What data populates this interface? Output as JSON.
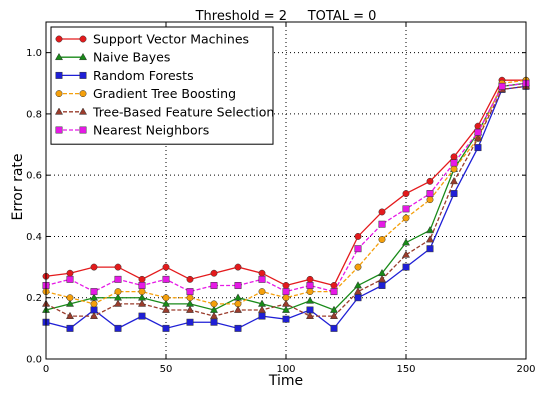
{
  "chart_data": {
    "type": "line",
    "title": "Threshold = 2     TOTAL = 0",
    "xlabel": "Time",
    "ylabel": "Error rate",
    "xlim": [
      0,
      200
    ],
    "ylim": [
      0.0,
      1.1
    ],
    "xticks": [
      0,
      50,
      100,
      150,
      200
    ],
    "yticks": [
      0.0,
      0.2,
      0.4,
      0.6,
      0.8,
      1.0
    ],
    "xtick_labels": [
      "0",
      "50",
      "100",
      "150",
      "200"
    ],
    "ytick_labels": [
      "0.0",
      "0.2",
      "0.4",
      "0.6",
      "0.8",
      "1.0"
    ],
    "grid": true,
    "legend_position": "top-left",
    "x": [
      0,
      10,
      20,
      30,
      40,
      50,
      60,
      70,
      80,
      90,
      100,
      110,
      120,
      130,
      140,
      150,
      160,
      170,
      180,
      190,
      200
    ],
    "series": [
      {
        "name": "Support Vector Machines",
        "color": "#e41a1c",
        "marker": "circle",
        "dash": "solid",
        "values": [
          0.27,
          0.28,
          0.3,
          0.3,
          0.26,
          0.3,
          0.26,
          0.28,
          0.3,
          0.28,
          0.24,
          0.26,
          0.24,
          0.4,
          0.48,
          0.54,
          0.58,
          0.66,
          0.76,
          0.91,
          0.91
        ]
      },
      {
        "name": "Naive Bayes",
        "color": "#188a18",
        "marker": "triangle",
        "dash": "solid",
        "values": [
          0.16,
          0.18,
          0.2,
          0.2,
          0.2,
          0.18,
          0.18,
          0.16,
          0.2,
          0.18,
          0.16,
          0.19,
          0.16,
          0.24,
          0.28,
          0.38,
          0.42,
          0.62,
          0.74,
          0.89,
          0.9
        ]
      },
      {
        "name": "Random Forests",
        "color": "#1f1fd6",
        "marker": "square",
        "dash": "solid",
        "values": [
          0.12,
          0.1,
          0.16,
          0.1,
          0.14,
          0.1,
          0.12,
          0.12,
          0.1,
          0.14,
          0.13,
          0.16,
          0.1,
          0.2,
          0.24,
          0.3,
          0.36,
          0.54,
          0.69,
          0.88,
          0.89
        ]
      },
      {
        "name": "Gradient Tree Boosting",
        "color": "#f5a00c",
        "marker": "circle",
        "dash": "dashed",
        "values": [
          0.22,
          0.2,
          0.18,
          0.22,
          0.22,
          0.2,
          0.2,
          0.18,
          0.18,
          0.22,
          0.2,
          0.22,
          0.22,
          0.3,
          0.39,
          0.46,
          0.52,
          0.62,
          0.72,
          0.9,
          0.91
        ]
      },
      {
        "name": "Tree-Based Feature Selection",
        "color": "#9a3c2c",
        "marker": "triangle",
        "dash": "dashed",
        "values": [
          0.18,
          0.14,
          0.14,
          0.18,
          0.18,
          0.16,
          0.16,
          0.14,
          0.16,
          0.16,
          0.18,
          0.14,
          0.14,
          0.22,
          0.26,
          0.34,
          0.39,
          0.58,
          0.72,
          0.88,
          0.89
        ]
      },
      {
        "name": "Nearest Neighbors",
        "color": "#e61ae6",
        "marker": "square",
        "dash": "dashed",
        "values": [
          0.24,
          0.26,
          0.22,
          0.26,
          0.24,
          0.26,
          0.22,
          0.24,
          0.24,
          0.26,
          0.22,
          0.24,
          0.22,
          0.36,
          0.44,
          0.49,
          0.54,
          0.64,
          0.74,
          0.89,
          0.9
        ]
      }
    ]
  }
}
